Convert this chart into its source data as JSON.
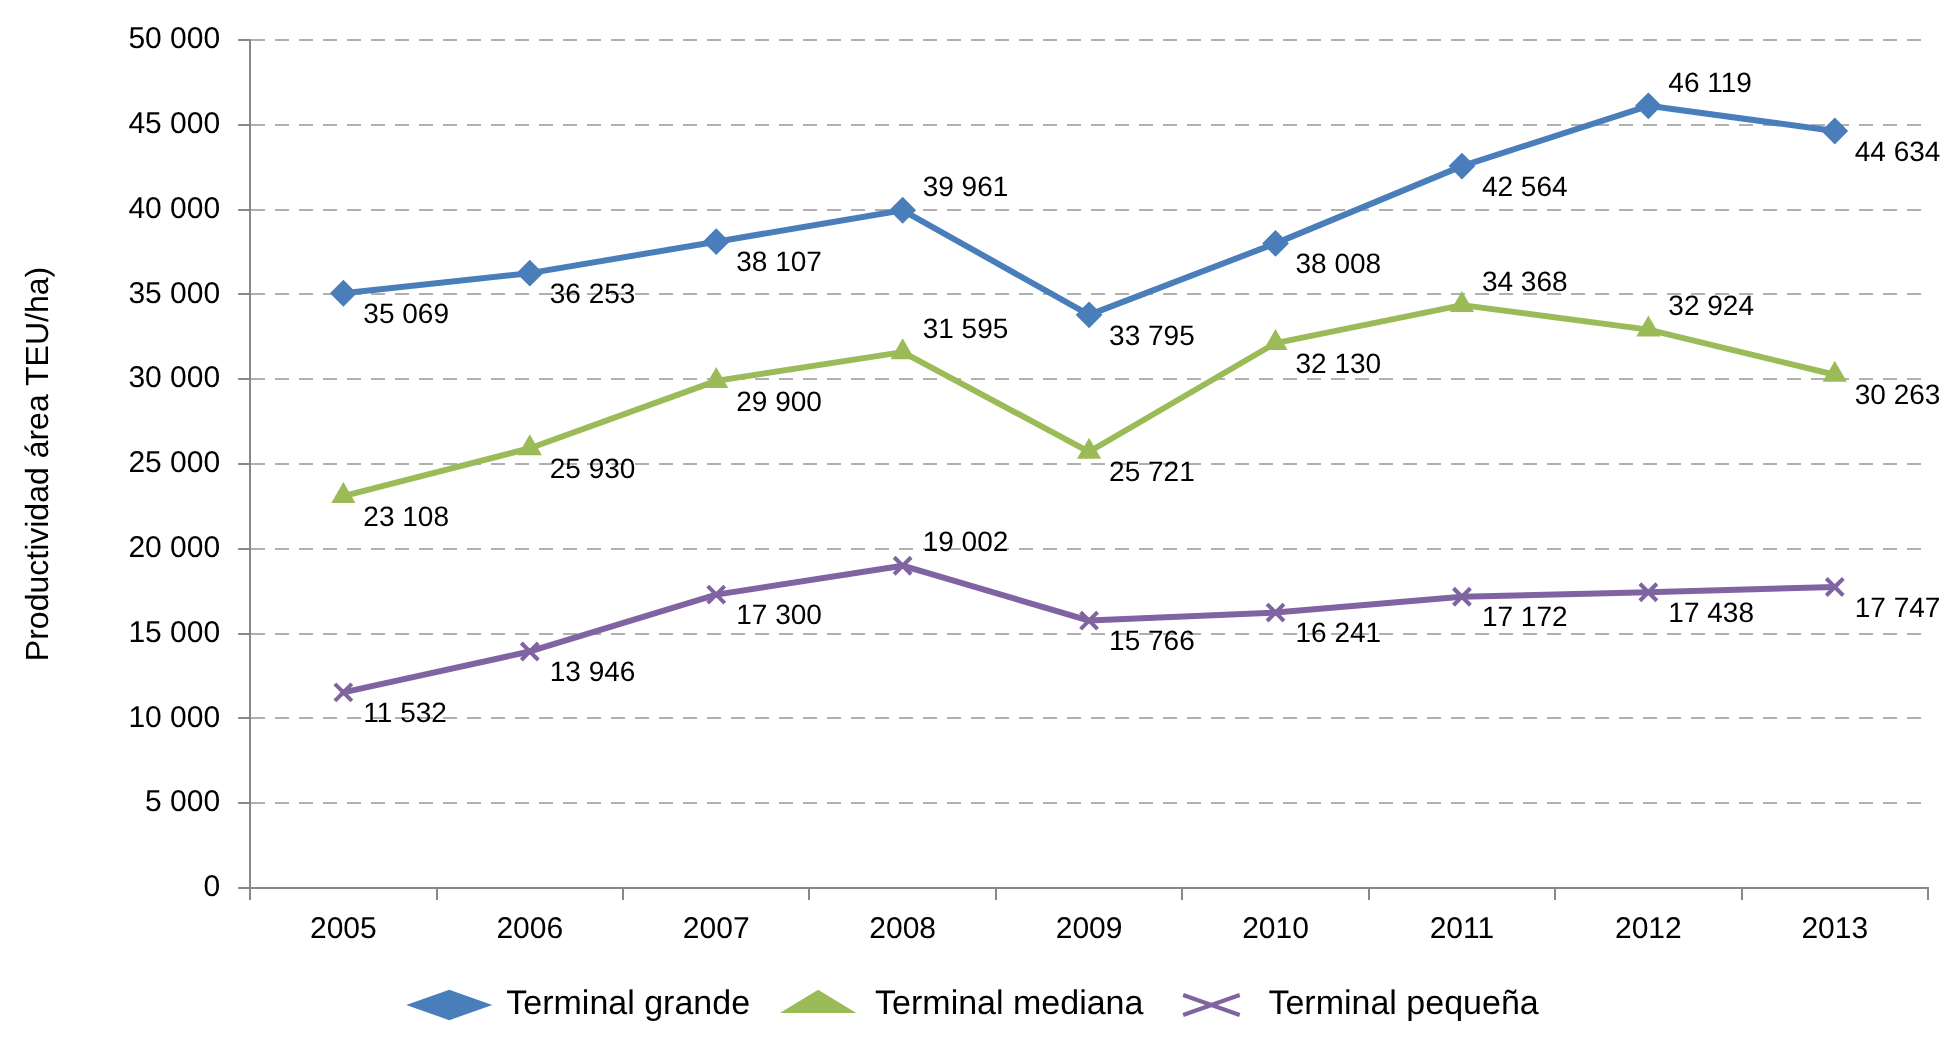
{
  "chart_data": {
    "type": "line",
    "ylabel": "Productividad área TEU/ha)",
    "categories": [
      "2005",
      "2006",
      "2007",
      "2008",
      "2009",
      "2010",
      "2011",
      "2012",
      "2013"
    ],
    "series": [
      {
        "name": "Terminal grande",
        "color": "#4a7ebb",
        "marker": "diamond",
        "values": [
          35069,
          36253,
          38107,
          39961,
          33795,
          38008,
          42564,
          46119,
          44634
        ],
        "value_labels": [
          "35 069",
          "36 253",
          "38 107",
          "39 961",
          "33 795",
          "38 008",
          "42 564",
          "46 119",
          "44 634"
        ]
      },
      {
        "name": "Terminal mediana",
        "color": "#9bbb59",
        "marker": "triangle",
        "values": [
          23108,
          25930,
          29900,
          31595,
          25721,
          32130,
          34368,
          32924,
          30263
        ],
        "value_labels": [
          "23 108",
          "25 930",
          "29 900",
          "31 595",
          "25 721",
          "32 130",
          "34 368",
          "32 924",
          "30 263"
        ]
      },
      {
        "name": "Terminal pequeña",
        "color": "#8064a2",
        "marker": "cross",
        "values": [
          11532,
          13946,
          17300,
          19002,
          15766,
          16241,
          17172,
          17438,
          17747
        ],
        "value_labels": [
          "11 532",
          "13 946",
          "17 300",
          "19 002",
          "15 766",
          "16 241",
          "17 172",
          "17 438",
          "17 747"
        ]
      }
    ],
    "ylim": [
      0,
      50000
    ],
    "yticks": [
      {
        "value": 0,
        "label": "0"
      },
      {
        "value": 5000,
        "label": "5 000"
      },
      {
        "value": 10000,
        "label": "10 000"
      },
      {
        "value": 15000,
        "label": "15 000"
      },
      {
        "value": 20000,
        "label": "20 000"
      },
      {
        "value": 25000,
        "label": "25 000"
      },
      {
        "value": 30000,
        "label": "30 000"
      },
      {
        "value": 35000,
        "label": "35 000"
      },
      {
        "value": 40000,
        "label": "40 000"
      },
      {
        "value": 45000,
        "label": "45 000"
      },
      {
        "value": 50000,
        "label": "50 000"
      }
    ],
    "grid": "y",
    "legend": "bottom",
    "line_style": "solid"
  }
}
